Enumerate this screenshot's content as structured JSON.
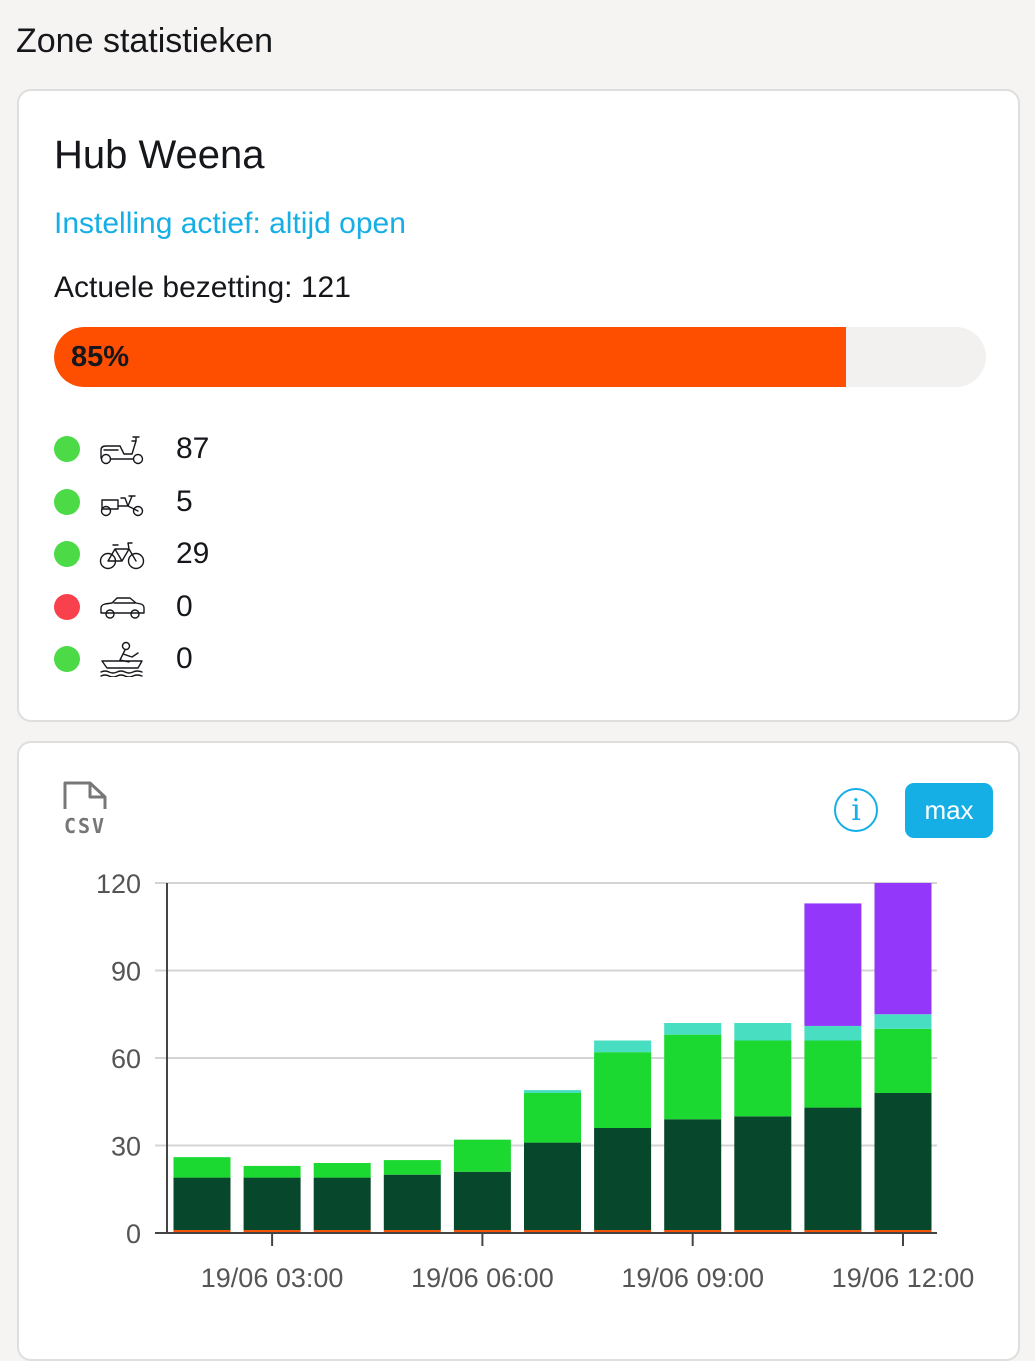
{
  "page": {
    "title": "Zone statistieken"
  },
  "zone": {
    "name": "Hub Weena",
    "setting": "Instelling actief: altijd open",
    "occupancy": "Actuele bezetting: 121",
    "progress": {
      "percent": 85,
      "label": "85%",
      "color": "#fe4e00"
    },
    "vehicles": [
      {
        "icon": "scooter-icon",
        "status": "green",
        "count": "87"
      },
      {
        "icon": "cargo-bike-icon",
        "status": "green",
        "count": "5"
      },
      {
        "icon": "bicycle-icon",
        "status": "green",
        "count": "29"
      },
      {
        "icon": "car-icon",
        "status": "red",
        "count": "0"
      },
      {
        "icon": "boat-icon",
        "status": "green",
        "count": "0"
      }
    ],
    "status_colors": {
      "green": "#4cdb47",
      "red": "#f8414c"
    }
  },
  "chart_controls": {
    "csv_label": "CSV",
    "info_label": "i",
    "max_label": "max"
  },
  "chart_data": {
    "type": "bar",
    "stacked": true,
    "categories": [
      "02:00",
      "03:00",
      "04:00",
      "05:00",
      "06:00",
      "07:00",
      "08:00",
      "09:00",
      "10:00",
      "11:00",
      "12:00"
    ],
    "x_tick_labels": [
      {
        "category": "03:00",
        "label": "19/06 03:00"
      },
      {
        "category": "06:00",
        "label": "19/06 06:00"
      },
      {
        "category": "09:00",
        "label": "19/06 09:00"
      },
      {
        "category": "12:00",
        "label": "19/06 12:00"
      }
    ],
    "ylim": [
      0,
      120
    ],
    "yticks": [
      0,
      30,
      60,
      90,
      120
    ],
    "grid": true,
    "series": [
      {
        "color": "#fe4e00",
        "values": [
          1,
          1,
          1,
          1,
          1,
          1,
          1,
          1,
          1,
          1,
          1
        ]
      },
      {
        "color": "#07472b",
        "values": [
          18,
          18,
          18,
          19,
          20,
          30,
          35,
          38,
          39,
          42,
          47
        ]
      },
      {
        "color": "#1cd932",
        "values": [
          7,
          4,
          5,
          5,
          11,
          17,
          26,
          29,
          26,
          23,
          22
        ]
      },
      {
        "color": "#48dec1",
        "values": [
          0,
          0,
          0,
          0,
          0,
          1,
          4,
          4,
          6,
          5,
          5
        ]
      },
      {
        "color": "#9337fa",
        "values": [
          0,
          0,
          0,
          0,
          0,
          0,
          0,
          0,
          0,
          42,
          45
        ]
      }
    ]
  }
}
